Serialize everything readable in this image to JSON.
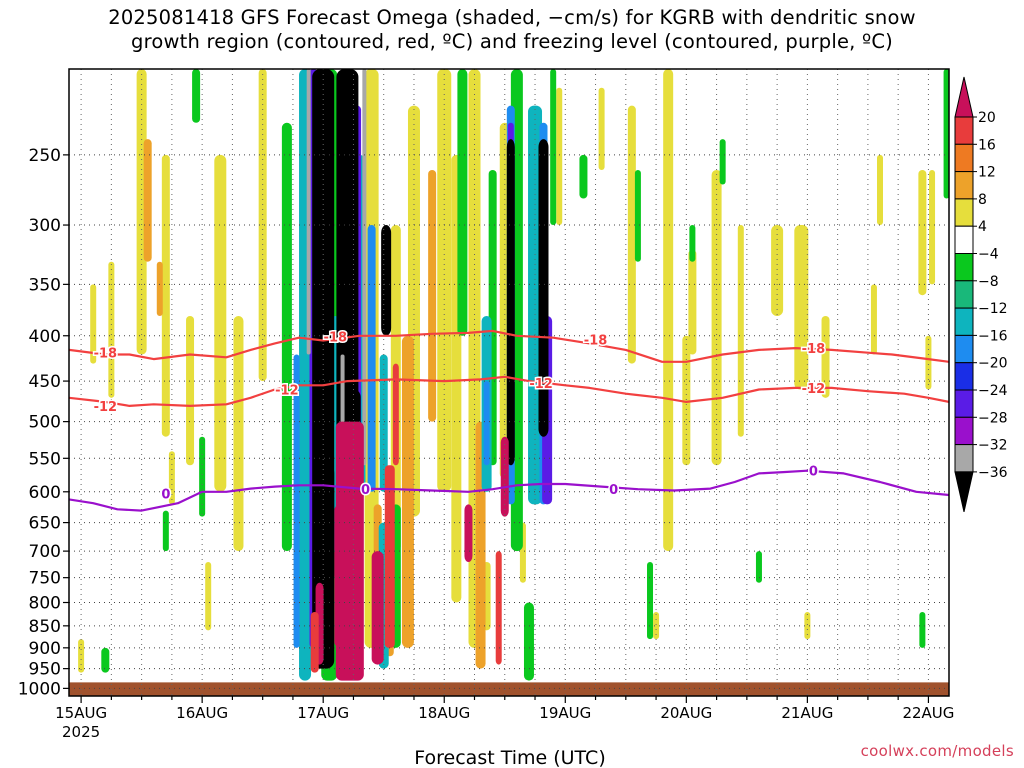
{
  "title_line1": "2025081418 GFS Forecast Omega (shaded, −cm/s) for KGRB with dendritic snow",
  "title_line2": "growth region (contoured, red, ºC) and freezing level (contoured, purple, ºC)",
  "credit": "coolwx.com/models",
  "chart_data": {
    "type": "heatmap",
    "xlabel": "Forecast Time (UTC)",
    "ylabel": "",
    "x_ticks": [
      {
        "label": "15AUG",
        "sub": "2025",
        "day": 0
      },
      {
        "label": "16AUG",
        "day": 1
      },
      {
        "label": "17AUG",
        "day": 2
      },
      {
        "label": "18AUG",
        "day": 3
      },
      {
        "label": "19AUG",
        "day": 4
      },
      {
        "label": "20AUG",
        "day": 5
      },
      {
        "label": "21AUG",
        "day": 6
      },
      {
        "label": "22AUG",
        "day": 7
      }
    ],
    "x_range_days": [
      -0.1,
      7.17
    ],
    "y_ticks": [
      250,
      300,
      350,
      400,
      450,
      500,
      550,
      600,
      650,
      700,
      750,
      800,
      850,
      900,
      950,
      1000
    ],
    "y_range_hpa": [
      200,
      1020
    ],
    "y_scale": "log",
    "grid": true,
    "colorbar": {
      "labels": [
        "20",
        "16",
        "12",
        "8",
        "4",
        "−4",
        "−8",
        "−12",
        "−16",
        "−20",
        "−24",
        "−28",
        "−32",
        "−36"
      ],
      "colors": [
        "#c8105a",
        "#e83c3c",
        "#ee7a22",
        "#eda22a",
        "#e6de3c",
        "#ffffff",
        "#0ac81e",
        "#19b87a",
        "#0eb4be",
        "#1e8cf0",
        "#1a2ee6",
        "#5a1ce6",
        "#9a10cc",
        "#a8a8a8",
        "#000000"
      ]
    },
    "ground_color": "#a0522d",
    "series": [
      {
        "name": "-18",
        "color": "#f24040",
        "points": [
          [
            -0.1,
            415
          ],
          [
            0.2,
            420
          ],
          [
            0.4,
            420
          ],
          [
            0.6,
            425
          ],
          [
            0.9,
            420
          ],
          [
            1.2,
            423
          ],
          [
            1.4,
            415
          ],
          [
            1.6,
            408
          ],
          [
            1.8,
            402
          ],
          [
            2.0,
            405
          ],
          [
            2.3,
            400
          ],
          [
            2.6,
            400
          ],
          [
            2.9,
            398
          ],
          [
            3.2,
            397
          ],
          [
            3.4,
            395
          ],
          [
            3.6,
            400
          ],
          [
            3.9,
            402
          ],
          [
            4.2,
            408
          ],
          [
            4.5,
            415
          ],
          [
            4.8,
            428
          ],
          [
            5.0,
            428
          ],
          [
            5.3,
            420
          ],
          [
            5.6,
            415
          ],
          [
            5.9,
            413
          ],
          [
            6.2,
            415
          ],
          [
            6.5,
            418
          ],
          [
            6.7,
            420
          ],
          [
            7.0,
            425
          ],
          [
            7.17,
            428
          ]
        ],
        "labels": [
          [
            0.2,
            418
          ],
          [
            2.1,
            401
          ],
          [
            4.25,
            404
          ],
          [
            6.05,
            413
          ]
        ]
      },
      {
        "name": "-12",
        "color": "#f24040",
        "points": [
          [
            -0.1,
            470
          ],
          [
            0.2,
            475
          ],
          [
            0.4,
            480
          ],
          [
            0.6,
            478
          ],
          [
            0.9,
            480
          ],
          [
            1.2,
            478
          ],
          [
            1.4,
            470
          ],
          [
            1.6,
            460
          ],
          [
            1.8,
            455
          ],
          [
            2.0,
            455
          ],
          [
            2.2,
            450
          ],
          [
            2.6,
            448
          ],
          [
            3.0,
            450
          ],
          [
            3.3,
            448
          ],
          [
            3.5,
            445
          ],
          [
            3.7,
            450
          ],
          [
            4.0,
            455
          ],
          [
            4.2,
            458
          ],
          [
            4.5,
            465
          ],
          [
            4.8,
            470
          ],
          [
            5.0,
            475
          ],
          [
            5.3,
            470
          ],
          [
            5.6,
            460
          ],
          [
            5.9,
            458
          ],
          [
            6.2,
            458
          ],
          [
            6.5,
            462
          ],
          [
            6.8,
            465
          ],
          [
            7.0,
            470
          ],
          [
            7.17,
            475
          ]
        ],
        "labels": [
          [
            0.2,
            480
          ],
          [
            1.7,
            460
          ],
          [
            3.8,
            452
          ],
          [
            6.05,
            458
          ]
        ]
      },
      {
        "name": "0",
        "color": "#9a10cc",
        "points": [
          [
            -0.1,
            612
          ],
          [
            0.1,
            618
          ],
          [
            0.3,
            628
          ],
          [
            0.5,
            630
          ],
          [
            0.8,
            618
          ],
          [
            1.0,
            600
          ],
          [
            1.2,
            600
          ],
          [
            1.4,
            595
          ],
          [
            1.6,
            592
          ],
          [
            1.8,
            590
          ],
          [
            2.0,
            590
          ],
          [
            2.3,
            595
          ],
          [
            2.6,
            596
          ],
          [
            2.9,
            598
          ],
          [
            3.2,
            600
          ],
          [
            3.4,
            596
          ],
          [
            3.6,
            590
          ],
          [
            3.8,
            588
          ],
          [
            4.0,
            588
          ],
          [
            4.3,
            592
          ],
          [
            4.6,
            596
          ],
          [
            4.9,
            598
          ],
          [
            5.2,
            595
          ],
          [
            5.4,
            585
          ],
          [
            5.6,
            572
          ],
          [
            5.8,
            570
          ],
          [
            6.0,
            568
          ],
          [
            6.3,
            572
          ],
          [
            6.6,
            585
          ],
          [
            6.9,
            600
          ],
          [
            7.17,
            605
          ]
        ],
        "labels": [
          [
            0.7,
            603
          ],
          [
            2.35,
            596
          ],
          [
            4.4,
            596
          ],
          [
            6.05,
            568
          ]
        ]
      }
    ]
  }
}
